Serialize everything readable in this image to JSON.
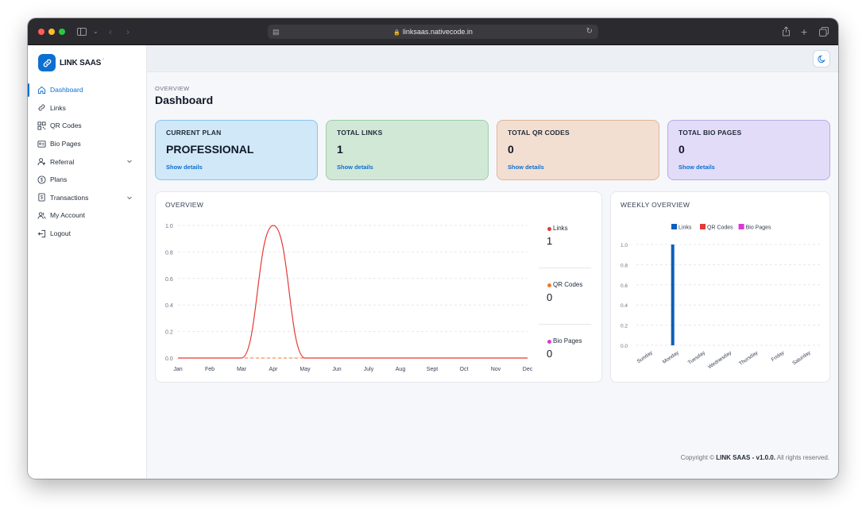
{
  "browser": {
    "url": "linksaas.nativecode.in"
  },
  "app": {
    "name": "LINK SAAS",
    "mark": "⸗"
  },
  "sidebar": {
    "items": [
      {
        "label": "Dashboard",
        "icon": "home-icon"
      },
      {
        "label": "Links",
        "icon": "link-icon"
      },
      {
        "label": "QR Codes",
        "icon": "qr-code-icon"
      },
      {
        "label": "Bio Pages",
        "icon": "bio-page-icon"
      },
      {
        "label": "Referral",
        "icon": "referral-icon"
      },
      {
        "label": "Plans",
        "icon": "dollar-icon"
      },
      {
        "label": "Transactions",
        "icon": "receipt-icon"
      },
      {
        "label": "My Account",
        "icon": "users-icon"
      },
      {
        "label": "Logout",
        "icon": "logout-icon"
      }
    ]
  },
  "header": {
    "overline": "OVERVIEW",
    "title": "Dashboard"
  },
  "cards": [
    {
      "label": "CURRENT PLAN",
      "value": "PROFESSIONAL",
      "link": "Show details",
      "bg": "#d1e8f8",
      "border": "#8cc4ed"
    },
    {
      "label": "TOTAL LINKS",
      "value": "1",
      "link": "Show details",
      "bg": "#d2e8d6",
      "border": "#9ccfa6"
    },
    {
      "label": "TOTAL QR CODES",
      "value": "0",
      "link": "Show details",
      "bg": "#f3dfd1",
      "border": "#e2b497"
    },
    {
      "label": "TOTAL BIO PAGES",
      "value": "0",
      "link": "Show details",
      "bg": "#e2dcf8",
      "border": "#b7abe8"
    }
  ],
  "overview": {
    "title": "OVERVIEW",
    "legend": [
      {
        "label": "Links",
        "value": "1",
        "color": "#e53935"
      },
      {
        "label": "QR Codes",
        "value": "0",
        "color": "#f07a2c"
      },
      {
        "label": "Bio Pages",
        "value": "0",
        "color": "#d63ad6"
      }
    ]
  },
  "weekly": {
    "title": "WEEKLY OVERVIEW"
  },
  "footer": {
    "prefix": "Copyright ©",
    "brand": "LINK SAAS - v1.0.0.",
    "suffix": "All rights reserved."
  },
  "chart_data": [
    {
      "type": "line",
      "title": "OVERVIEW",
      "categories": [
        "Jan",
        "Feb",
        "Mar",
        "Apr",
        "May",
        "Jun",
        "July",
        "Aug",
        "Sept",
        "Oct",
        "Nov",
        "Dec"
      ],
      "yticks": [
        "1.0",
        "0.8",
        "0.6",
        "0.4",
        "0.2",
        "0.0"
      ],
      "ylim": [
        0,
        1
      ],
      "series": [
        {
          "name": "Links",
          "color": "#e53935",
          "values": [
            0,
            0,
            0,
            1,
            0,
            0,
            0,
            0,
            0,
            0,
            0,
            0
          ]
        },
        {
          "name": "QR Codes",
          "color": "#f07a2c",
          "values": [
            0,
            0,
            0,
            0,
            0,
            0,
            0,
            0,
            0,
            0,
            0,
            0
          ]
        },
        {
          "name": "Bio Pages",
          "color": "#d63ad6",
          "values": [
            0,
            0,
            0,
            0,
            0,
            0,
            0,
            0,
            0,
            0,
            0,
            0
          ]
        }
      ],
      "grid": true
    },
    {
      "type": "bar",
      "title": "WEEKLY OVERVIEW",
      "categories": [
        "Sunday",
        "Monday",
        "Tuesday",
        "Wednesday",
        "Thursday",
        "Friday",
        "Saturday"
      ],
      "yticks": [
        "1.0",
        "0.8",
        "0.6",
        "0.4",
        "0.2",
        "0.0"
      ],
      "ylim": [
        0,
        1
      ],
      "legend_position": "top",
      "series": [
        {
          "name": "Links",
          "color": "#0d5fb8",
          "values": [
            0,
            1,
            0,
            0,
            0,
            0,
            0
          ]
        },
        {
          "name": "QR Codes",
          "color": "#e53935",
          "values": [
            0,
            0,
            0,
            0,
            0,
            0,
            0
          ]
        },
        {
          "name": "Bio Pages",
          "color": "#d63ad6",
          "values": [
            0,
            0,
            0,
            0,
            0,
            0,
            0
          ]
        }
      ],
      "grid": true
    }
  ]
}
